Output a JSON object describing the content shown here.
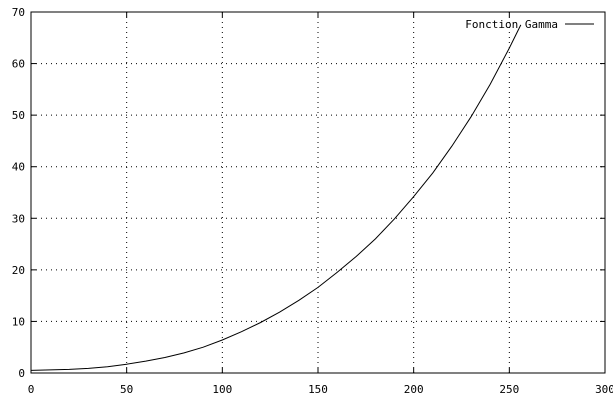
{
  "chart_data": {
    "type": "line",
    "title": "",
    "xlabel": "",
    "ylabel": "",
    "xlim": [
      0,
      300
    ],
    "ylim": [
      0,
      70
    ],
    "x_ticks": [
      0,
      50,
      100,
      150,
      200,
      250,
      300
    ],
    "y_ticks": [
      0,
      10,
      20,
      30,
      40,
      50,
      60,
      70
    ],
    "x_tick_labels": [
      "0",
      "50",
      "100",
      "150",
      "200",
      "250",
      "300"
    ],
    "y_tick_labels": [
      "0",
      "10",
      "20",
      "30",
      "40",
      "50",
      "60",
      "70"
    ],
    "grid": true,
    "grid_style": "dotted",
    "legend_position": "top-right",
    "series": [
      {
        "name": "Fonction Gamma",
        "color": "#000000",
        "x": [
          0,
          10,
          20,
          30,
          40,
          50,
          60,
          70,
          80,
          90,
          100,
          110,
          120,
          130,
          140,
          150,
          160,
          170,
          180,
          190,
          200,
          210,
          220,
          230,
          240,
          250,
          256
        ],
        "y": [
          0.5,
          0.6,
          0.7,
          0.9,
          1.2,
          1.7,
          2.3,
          3.0,
          3.9,
          5.0,
          6.4,
          8.0,
          9.8,
          11.8,
          14.1,
          16.6,
          19.5,
          22.6,
          26.0,
          29.9,
          34.2,
          38.8,
          44.0,
          49.7,
          56.0,
          63.0,
          67.5
        ]
      }
    ]
  }
}
